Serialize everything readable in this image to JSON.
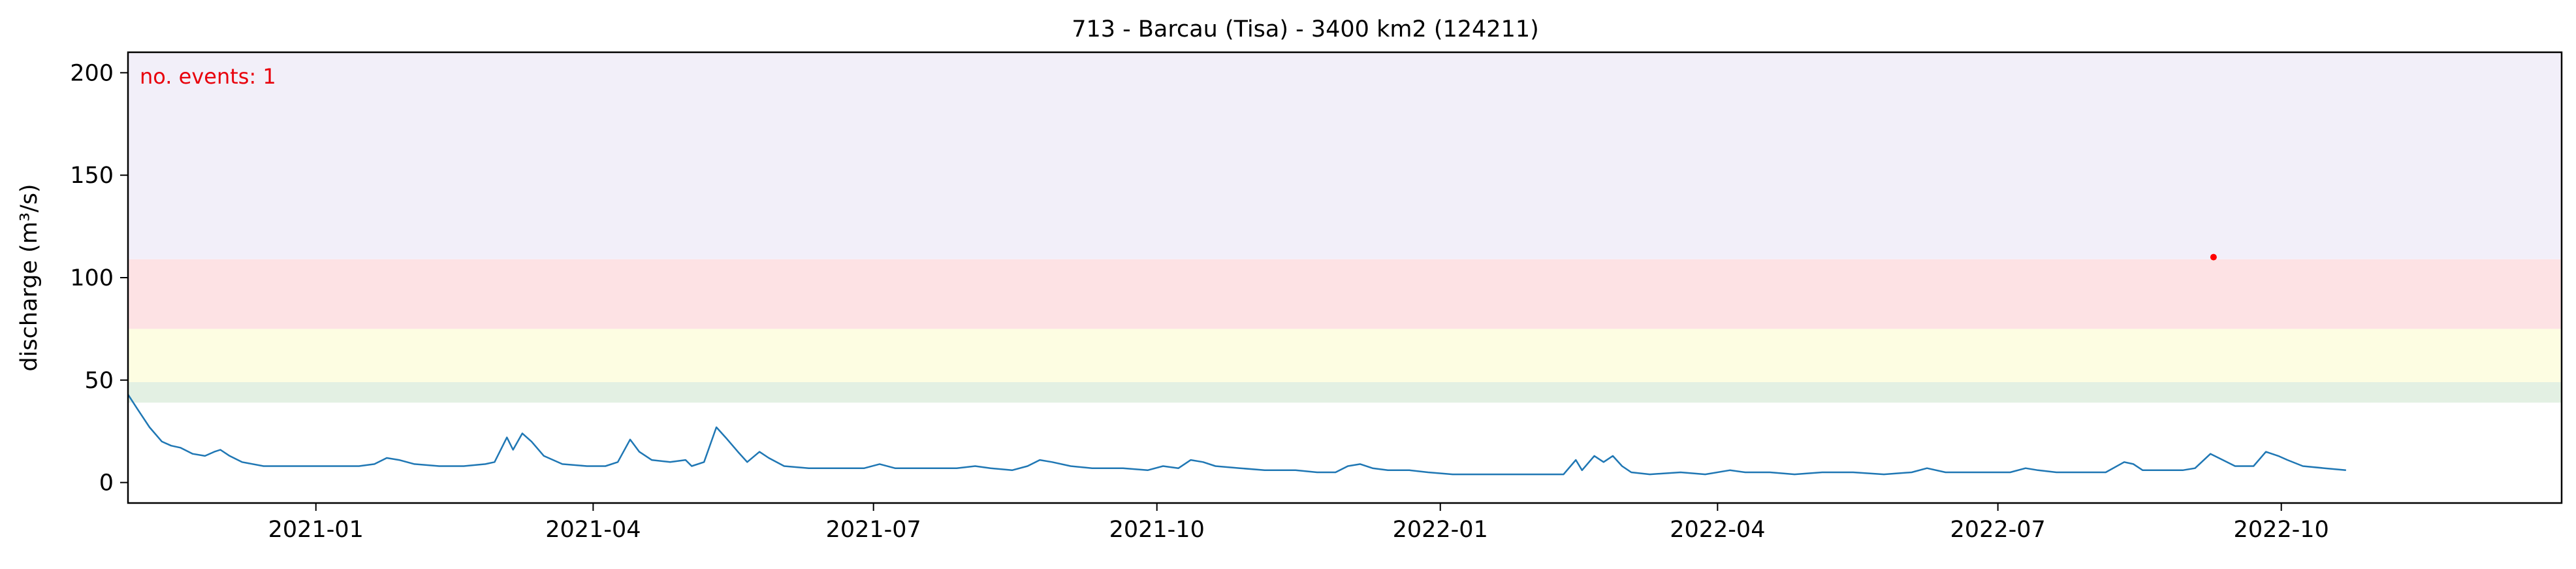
{
  "chart_data": {
    "type": "line",
    "title": "713 - Barcau (Tisa) - 3400 km2 (124211)",
    "ylabel": "discharge (m³/s)",
    "xlabel": "",
    "annotation": "no. events: 1",
    "xlim": [
      "2020-11-01",
      "2022-12-31"
    ],
    "ylim": [
      -10,
      210
    ],
    "yticks": [
      0,
      50,
      100,
      150,
      200
    ],
    "xticks": [
      {
        "date": "2021-01-01",
        "label": "2021-01"
      },
      {
        "date": "2021-04-01",
        "label": "2021-04"
      },
      {
        "date": "2021-07-01",
        "label": "2021-07"
      },
      {
        "date": "2021-10-01",
        "label": "2021-10"
      },
      {
        "date": "2022-01-01",
        "label": "2022-01"
      },
      {
        "date": "2022-04-01",
        "label": "2022-04"
      },
      {
        "date": "2022-07-01",
        "label": "2022-07"
      },
      {
        "date": "2022-10-01",
        "label": "2022-10"
      }
    ],
    "bands": [
      {
        "from": 39,
        "to": 49,
        "color": "#e3f0e3"
      },
      {
        "from": 49,
        "to": 75,
        "color": "#fdfde2"
      },
      {
        "from": 75,
        "to": 109,
        "color": "#fde2e4"
      },
      {
        "from": 109,
        "to": 210,
        "color": "#f2eff9"
      }
    ],
    "series": [
      {
        "color": "#1f77b4",
        "points": [
          [
            "2020-11-01",
            43
          ],
          [
            "2020-11-04",
            36
          ],
          [
            "2020-11-08",
            27
          ],
          [
            "2020-11-12",
            20
          ],
          [
            "2020-11-15",
            18
          ],
          [
            "2020-11-18",
            17
          ],
          [
            "2020-11-22",
            14
          ],
          [
            "2020-11-26",
            13
          ],
          [
            "2020-11-29",
            15
          ],
          [
            "2020-12-01",
            16
          ],
          [
            "2020-12-04",
            13
          ],
          [
            "2020-12-08",
            10
          ],
          [
            "2020-12-15",
            8
          ],
          [
            "2020-12-25",
            8
          ],
          [
            "2021-01-05",
            8
          ],
          [
            "2021-01-15",
            8
          ],
          [
            "2021-01-20",
            9
          ],
          [
            "2021-01-24",
            12
          ],
          [
            "2021-01-28",
            11
          ],
          [
            "2021-02-02",
            9
          ],
          [
            "2021-02-10",
            8
          ],
          [
            "2021-02-18",
            8
          ],
          [
            "2021-02-25",
            9
          ],
          [
            "2021-02-28",
            10
          ],
          [
            "2021-03-04",
            22
          ],
          [
            "2021-03-06",
            16
          ],
          [
            "2021-03-09",
            24
          ],
          [
            "2021-03-12",
            20
          ],
          [
            "2021-03-16",
            13
          ],
          [
            "2021-03-22",
            9
          ],
          [
            "2021-03-30",
            8
          ],
          [
            "2021-04-05",
            8
          ],
          [
            "2021-04-09",
            10
          ],
          [
            "2021-04-13",
            21
          ],
          [
            "2021-04-16",
            15
          ],
          [
            "2021-04-20",
            11
          ],
          [
            "2021-04-26",
            10
          ],
          [
            "2021-05-01",
            11
          ],
          [
            "2021-05-03",
            8
          ],
          [
            "2021-05-07",
            10
          ],
          [
            "2021-05-11",
            27
          ],
          [
            "2021-05-14",
            22
          ],
          [
            "2021-05-18",
            15
          ],
          [
            "2021-05-21",
            10
          ],
          [
            "2021-05-25",
            15
          ],
          [
            "2021-05-28",
            12
          ],
          [
            "2021-06-02",
            8
          ],
          [
            "2021-06-10",
            7
          ],
          [
            "2021-06-20",
            7
          ],
          [
            "2021-06-28",
            7
          ],
          [
            "2021-07-03",
            9
          ],
          [
            "2021-07-08",
            7
          ],
          [
            "2021-07-18",
            7
          ],
          [
            "2021-07-28",
            7
          ],
          [
            "2021-08-03",
            8
          ],
          [
            "2021-08-08",
            7
          ],
          [
            "2021-08-15",
            6
          ],
          [
            "2021-08-20",
            8
          ],
          [
            "2021-08-24",
            11
          ],
          [
            "2021-08-28",
            10
          ],
          [
            "2021-09-03",
            8
          ],
          [
            "2021-09-10",
            7
          ],
          [
            "2021-09-20",
            7
          ],
          [
            "2021-09-28",
            6
          ],
          [
            "2021-10-03",
            8
          ],
          [
            "2021-10-08",
            7
          ],
          [
            "2021-10-12",
            11
          ],
          [
            "2021-10-16",
            10
          ],
          [
            "2021-10-20",
            8
          ],
          [
            "2021-10-28",
            7
          ],
          [
            "2021-11-05",
            6
          ],
          [
            "2021-11-15",
            6
          ],
          [
            "2021-11-22",
            5
          ],
          [
            "2021-11-28",
            5
          ],
          [
            "2021-12-02",
            8
          ],
          [
            "2021-12-06",
            9
          ],
          [
            "2021-12-10",
            7
          ],
          [
            "2021-12-15",
            6
          ],
          [
            "2021-12-22",
            6
          ],
          [
            "2021-12-28",
            5
          ],
          [
            "2022-01-05",
            4
          ],
          [
            "2022-01-12",
            4
          ],
          [
            "2022-01-20",
            4
          ],
          [
            "2022-01-28",
            4
          ],
          [
            "2022-02-05",
            4
          ],
          [
            "2022-02-10",
            4
          ],
          [
            "2022-02-14",
            11
          ],
          [
            "2022-02-16",
            6
          ],
          [
            "2022-02-20",
            13
          ],
          [
            "2022-02-23",
            10
          ],
          [
            "2022-02-26",
            13
          ],
          [
            "2022-03-01",
            8
          ],
          [
            "2022-03-04",
            5
          ],
          [
            "2022-03-10",
            4
          ],
          [
            "2022-03-20",
            5
          ],
          [
            "2022-03-28",
            4
          ],
          [
            "2022-04-05",
            6
          ],
          [
            "2022-04-10",
            5
          ],
          [
            "2022-04-18",
            5
          ],
          [
            "2022-04-26",
            4
          ],
          [
            "2022-05-05",
            5
          ],
          [
            "2022-05-15",
            5
          ],
          [
            "2022-05-25",
            4
          ],
          [
            "2022-06-03",
            5
          ],
          [
            "2022-06-08",
            7
          ],
          [
            "2022-06-14",
            5
          ],
          [
            "2022-06-22",
            5
          ],
          [
            "2022-06-30",
            5
          ],
          [
            "2022-07-05",
            5
          ],
          [
            "2022-07-10",
            7
          ],
          [
            "2022-07-14",
            6
          ],
          [
            "2022-07-20",
            5
          ],
          [
            "2022-07-26",
            5
          ],
          [
            "2022-08-01",
            5
          ],
          [
            "2022-08-05",
            5
          ],
          [
            "2022-08-11",
            10
          ],
          [
            "2022-08-14",
            9
          ],
          [
            "2022-08-17",
            6
          ],
          [
            "2022-08-22",
            6
          ],
          [
            "2022-08-30",
            6
          ],
          [
            "2022-09-03",
            7
          ],
          [
            "2022-09-08",
            14
          ],
          [
            "2022-09-12",
            11
          ],
          [
            "2022-09-16",
            8
          ],
          [
            "2022-09-22",
            8
          ],
          [
            "2022-09-26",
            15
          ],
          [
            "2022-09-30",
            13
          ],
          [
            "2022-10-03",
            11
          ],
          [
            "2022-10-08",
            8
          ],
          [
            "2022-10-15",
            7
          ],
          [
            "2022-10-22",
            6
          ]
        ]
      }
    ],
    "events": [
      {
        "date": "2022-09-09",
        "value": 110,
        "color": "#ff0000"
      }
    ]
  }
}
